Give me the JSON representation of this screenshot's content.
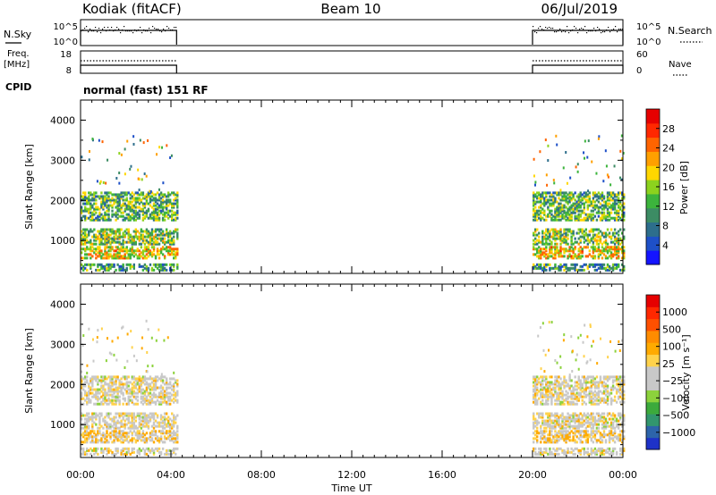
{
  "header": {
    "title_left": "Kodiak (fitACF)",
    "title_center": "Beam 10",
    "title_right": "06/Jul/2019"
  },
  "status_panels": {
    "nsky_label": "N.Sky",
    "nsearch_label": "N.Search",
    "freq_label_line1": "Freq.",
    "freq_label_line2": "[MHz]",
    "nave_label": "Nave",
    "cpid_label": "CPID",
    "cpid_text": "normal (fast) 151 RF",
    "noise_ticks_left": [
      "10^5",
      "10^0"
    ],
    "noise_ticks_right": [
      "10^5",
      "10^0"
    ],
    "freq_ticks_left": [
      "18",
      "8"
    ],
    "nave_ticks_right": [
      "60",
      "0"
    ]
  },
  "chart_data": [
    {
      "type": "heatmap",
      "name": "power",
      "ylabel": "Slant Range [km]",
      "ylim": [
        180,
        4500
      ],
      "yticks": [
        "4000",
        "3000",
        "2000",
        "1000"
      ],
      "xlim_hours": [
        0,
        24
      ],
      "colorbar": {
        "label": "Power [dB]",
        "ticks": [
          "28",
          "24",
          "20",
          "16",
          "12",
          "8",
          "4"
        ],
        "colors": [
          "#1414ff",
          "#1e50c8",
          "#2d6e8c",
          "#3c8c64",
          "#3cb43c",
          "#8cd21e",
          "#ffd700",
          "#ffa000",
          "#ff6400",
          "#ff2800",
          "#e60000"
        ]
      },
      "data_intervals_hours": [
        [
          0.0,
          4.25
        ],
        [
          20.0,
          24.0
        ]
      ],
      "echo_bands": [
        {
          "range_km": [
            250,
            400
          ],
          "power_db": 10
        },
        {
          "range_km": [
            550,
            850
          ],
          "power_db": 18
        },
        {
          "range_km": [
            900,
            1300
          ],
          "power_db": 14
        },
        {
          "range_km": [
            1500,
            2200
          ],
          "power_db": 12
        }
      ]
    },
    {
      "type": "heatmap",
      "name": "velocity",
      "ylabel": "Slant Range [km]",
      "ylim": [
        180,
        4500
      ],
      "yticks": [
        "4000",
        "3000",
        "2000",
        "1000"
      ],
      "xlim_hours": [
        0,
        24
      ],
      "xticks": [
        "00:00",
        "04:00",
        "08:00",
        "12:00",
        "16:00",
        "20:00",
        "00:00"
      ],
      "xlabel": "Time UT",
      "colorbar": {
        "label": "Velocity [m s⁻¹]",
        "ticks": [
          "1000",
          "500",
          "100",
          "25",
          "−25",
          "−100",
          "−500",
          "−1000"
        ],
        "colors": [
          "#1e32c8",
          "#2d64aa",
          "#32966e",
          "#3caa3c",
          "#8cd23c",
          "#c8c8c8",
          "#c8c8c8",
          "#ffd24b",
          "#ffaa00",
          "#ff8c00",
          "#ff5000",
          "#ff2800",
          "#e60000"
        ]
      },
      "data_intervals_hours": [
        [
          0.0,
          4.25
        ],
        [
          20.0,
          24.0
        ]
      ],
      "echo_bands": [
        {
          "range_km": [
            250,
            400
          ],
          "velocity_ms": 0
        },
        {
          "range_km": [
            550,
            850
          ],
          "velocity_ms": -30
        },
        {
          "range_km": [
            900,
            1300
          ],
          "velocity_ms": 0
        },
        {
          "range_km": [
            1500,
            2200
          ],
          "velocity_ms": 0
        }
      ]
    }
  ]
}
